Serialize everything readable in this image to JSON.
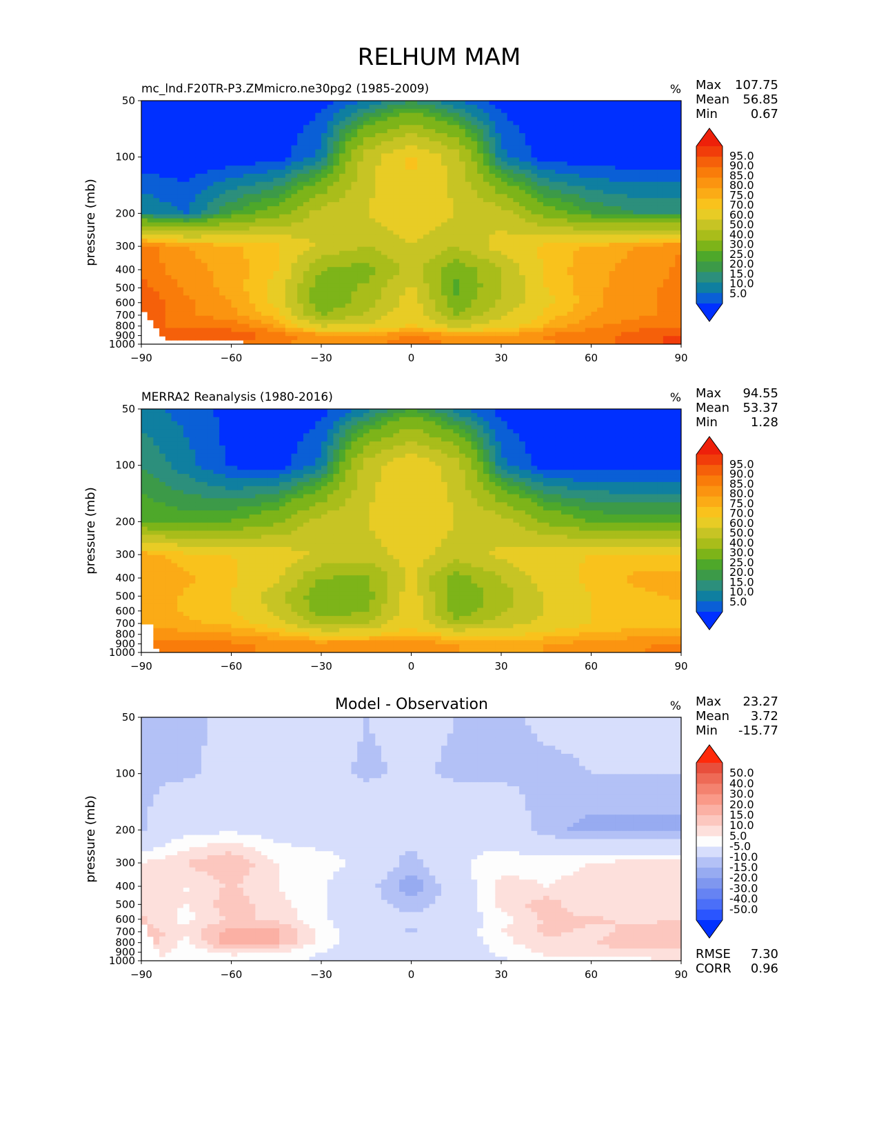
{
  "page_title": "RELHUM MAM",
  "colors": {
    "abs_levels": [
      "#0030ff",
      "#0a5fd6",
      "#0f7fa0",
      "#2c8f7c",
      "#3c9a48",
      "#4ea82a",
      "#7db419",
      "#a9bd1a",
      "#c7c424",
      "#e8cc25",
      "#f9c21c",
      "#fbab16",
      "#fb9410",
      "#f97c0a",
      "#f5600a",
      "#f13d0a",
      "#ee200a"
    ],
    "diff_levels": [
      "#0031ff",
      "#2a55ff",
      "#4b6ff8",
      "#6683f3",
      "#7f97ef",
      "#97abf1",
      "#b3c1f6",
      "#d7defc",
      "#fdfdfd",
      "#fde0dc",
      "#fcc7bf",
      "#fbb0a4",
      "#fa9988",
      "#f4826f",
      "#ee6a56",
      "#e84f3c",
      "#ff2a0a"
    ]
  },
  "panels": [
    {
      "title": "mc_lnd.F20TR-P3.ZMmicro.ne30pg2 (1985-2009)",
      "units": "%",
      "stats": {
        "max_label": "Max",
        "max": "107.75",
        "mean_label": "Mean",
        "mean": "56.85",
        "min_label": "Min",
        "min": "0.67"
      },
      "colorbar_labels": [
        "95.0",
        "90.0",
        "85.0",
        "80.0",
        "75.0",
        "70.0",
        "60.0",
        "50.0",
        "40.0",
        "30.0",
        "25.0",
        "20.0",
        "15.0",
        "10.0",
        "5.0"
      ]
    },
    {
      "title": "MERRA2 Reanalysis (1980-2016)",
      "units": "%",
      "stats": {
        "max_label": "Max",
        "max": "94.55",
        "mean_label": "Mean",
        "mean": "53.37",
        "min_label": "Min",
        "min": "1.28"
      },
      "colorbar_labels": [
        "95.0",
        "90.0",
        "85.0",
        "80.0",
        "75.0",
        "70.0",
        "60.0",
        "50.0",
        "40.0",
        "30.0",
        "25.0",
        "20.0",
        "15.0",
        "10.0",
        "5.0"
      ]
    },
    {
      "title": "Model - Observation",
      "units": "%",
      "stats": {
        "max_label": "Max",
        "max": "23.27",
        "mean_label": "Mean",
        "mean": "3.72",
        "min_label": "Min",
        "min": "-15.77"
      },
      "colorbar_labels": [
        "50.0",
        "40.0",
        "30.0",
        "20.0",
        "15.0",
        "10.0",
        "5.0",
        "-5.0",
        "-10.0",
        "-15.0",
        "-20.0",
        "-30.0",
        "-40.0",
        "-50.0"
      ],
      "extra_stats": {
        "rmse_label": "RMSE",
        "rmse": "7.30",
        "corr_label": "CORR",
        "corr": "0.96"
      }
    }
  ],
  "chart_data": [
    {
      "type": "heatmap",
      "title": "mc_lnd.F20TR-P3.ZMmicro.ne30pg2 (1985-2009)",
      "xlabel": "",
      "ylabel": "pressure (mb)",
      "xlim": [
        -90,
        90
      ],
      "ylim": [
        1000,
        50
      ],
      "xticks": [
        "−90",
        "−60",
        "−30",
        "0",
        "30",
        "60",
        "90"
      ],
      "yticks": [
        "50",
        "100",
        "200",
        "300",
        "400",
        "500",
        "600",
        "700",
        "800",
        "900",
        "1000"
      ],
      "levels": [
        5,
        10,
        15,
        20,
        25,
        30,
        40,
        50,
        60,
        70,
        75,
        80,
        85,
        90,
        95
      ],
      "field": {
        "lat": [
          -90,
          -75,
          -60,
          -45,
          -30,
          -15,
          0,
          15,
          30,
          45,
          60,
          75,
          90
        ],
        "pressure": [
          50,
          100,
          200,
          300,
          400,
          500,
          600,
          700,
          800,
          900,
          1000
        ],
        "values": [
          [
            1,
            1,
            1,
            1,
            3,
            10,
            20,
            10,
            3,
            1,
            1,
            1,
            1
          ],
          [
            1,
            1,
            1,
            2,
            12,
            55,
            72,
            55,
            12,
            2,
            1,
            1,
            1
          ],
          [
            15,
            10,
            25,
            35,
            55,
            60,
            68,
            60,
            55,
            35,
            25,
            20,
            20
          ],
          [
            88,
            80,
            76,
            72,
            58,
            50,
            60,
            50,
            65,
            72,
            76,
            80,
            85
          ],
          [
            88,
            82,
            78,
            70,
            40,
            35,
            55,
            32,
            50,
            72,
            78,
            82,
            86
          ],
          [
            92,
            84,
            78,
            68,
            33,
            42,
            62,
            28,
            50,
            70,
            78,
            84,
            86
          ],
          [
            94,
            86,
            80,
            68,
            32,
            45,
            66,
            33,
            52,
            68,
            78,
            84,
            86
          ],
          [
            94,
            86,
            82,
            72,
            40,
            52,
            68,
            40,
            58,
            72,
            80,
            84,
            86
          ],
          [
            90,
            90,
            88,
            80,
            60,
            62,
            72,
            58,
            66,
            76,
            84,
            88,
            90
          ],
          [
            90,
            92,
            94,
            88,
            82,
            80,
            86,
            82,
            80,
            86,
            88,
            92,
            96
          ],
          [
            90,
            88,
            90,
            86,
            82,
            84,
            88,
            84,
            80,
            84,
            88,
            92,
            98
          ]
        ],
        "missing_region": "below surface near -90 to -55"
      }
    },
    {
      "type": "heatmap",
      "title": "MERRA2 Reanalysis (1980-2016)",
      "xlabel": "",
      "ylabel": "pressure (mb)",
      "xlim": [
        -90,
        90
      ],
      "ylim": [
        1000,
        50
      ],
      "xticks": [
        "−90",
        "−60",
        "−30",
        "0",
        "30",
        "60",
        "90"
      ],
      "yticks": [
        "50",
        "100",
        "200",
        "300",
        "400",
        "500",
        "600",
        "700",
        "800",
        "900",
        "1000"
      ],
      "levels": [
        5,
        10,
        15,
        20,
        25,
        30,
        40,
        50,
        60,
        70,
        75,
        80,
        85,
        90,
        95
      ],
      "field": {
        "lat": [
          -90,
          -75,
          -60,
          -45,
          -30,
          -15,
          0,
          15,
          30,
          45,
          60,
          75,
          90
        ],
        "pressure": [
          50,
          100,
          200,
          300,
          400,
          500,
          600,
          700,
          800,
          900,
          1000
        ],
        "values": [
          [
            12,
            8,
            3,
            1,
            3,
            12,
            25,
            12,
            3,
            1,
            1,
            1,
            1
          ],
          [
            20,
            12,
            4,
            2,
            12,
            55,
            70,
            55,
            12,
            2,
            2,
            2,
            2
          ],
          [
            30,
            28,
            30,
            38,
            55,
            60,
            70,
            60,
            55,
            38,
            30,
            28,
            28
          ],
          [
            78,
            72,
            70,
            66,
            58,
            55,
            65,
            55,
            62,
            68,
            70,
            72,
            72
          ],
          [
            80,
            76,
            72,
            62,
            40,
            38,
            62,
            35,
            50,
            66,
            72,
            76,
            76
          ],
          [
            80,
            74,
            70,
            55,
            32,
            35,
            68,
            30,
            45,
            60,
            70,
            74,
            76
          ],
          [
            80,
            74,
            70,
            58,
            33,
            40,
            68,
            33,
            48,
            60,
            70,
            72,
            72
          ],
          [
            80,
            76,
            74,
            66,
            45,
            50,
            70,
            45,
            55,
            64,
            70,
            72,
            72
          ],
          [
            82,
            82,
            80,
            76,
            68,
            68,
            74,
            68,
            68,
            72,
            76,
            78,
            80
          ],
          [
            86,
            88,
            86,
            84,
            82,
            84,
            84,
            80,
            78,
            80,
            82,
            84,
            86
          ],
          [
            88,
            90,
            86,
            84,
            82,
            84,
            84,
            80,
            78,
            80,
            82,
            84,
            90
          ]
        ],
        "missing_region": "below surface near -90 to -85"
      }
    },
    {
      "type": "heatmap",
      "title": "Model - Observation",
      "xlabel": "",
      "ylabel": "pressure (mb)",
      "xlim": [
        -90,
        90
      ],
      "ylim": [
        1000,
        50
      ],
      "xticks": [
        "−90",
        "−60",
        "−30",
        "0",
        "30",
        "60",
        "90"
      ],
      "yticks": [
        "50",
        "100",
        "200",
        "300",
        "400",
        "500",
        "600",
        "700",
        "800",
        "900",
        "1000"
      ],
      "levels": [
        -50,
        -40,
        -30,
        -20,
        -15,
        -10,
        -5,
        5,
        10,
        15,
        20,
        30,
        40,
        50
      ],
      "field": {
        "lat": [
          -90,
          -75,
          -60,
          -45,
          -30,
          -15,
          0,
          15,
          30,
          45,
          60,
          75,
          90
        ],
        "pressure": [
          50,
          100,
          200,
          300,
          400,
          500,
          600,
          700,
          800,
          900,
          1000
        ],
        "values": [
          [
            -6,
            -6,
            -4,
            -2,
            -2,
            -5,
            -3,
            -5,
            -6,
            -4,
            -4,
            -4,
            -4
          ],
          [
            -6,
            -6,
            -3,
            -2,
            -3,
            -6,
            -4,
            -6,
            -6,
            -6,
            -5,
            -5,
            -5
          ],
          [
            -6,
            3,
            4,
            2,
            0,
            1,
            -2,
            1,
            1,
            -8,
            -12,
            -12,
            -12
          ],
          [
            10,
            15,
            20,
            10,
            8,
            3,
            -8,
            4,
            8,
            8,
            10,
            12,
            12
          ],
          [
            10,
            10,
            16,
            10,
            6,
            -2,
            -14,
            0,
            12,
            10,
            12,
            12,
            12
          ],
          [
            12,
            10,
            18,
            12,
            6,
            -2,
            -8,
            -2,
            12,
            18,
            10,
            12,
            14
          ],
          [
            16,
            8,
            16,
            14,
            6,
            0,
            -3,
            0,
            8,
            16,
            16,
            14,
            15
          ],
          [
            18,
            12,
            22,
            22,
            8,
            0,
            -6,
            0,
            10,
            16,
            14,
            16,
            18
          ],
          [
            20,
            8,
            24,
            20,
            8,
            0,
            0,
            0,
            8,
            14,
            14,
            20,
            20
          ],
          [
            16,
            6,
            12,
            10,
            5,
            0,
            0,
            0,
            6,
            12,
            12,
            14,
            14
          ],
          [
            10,
            6,
            6,
            6,
            4,
            0,
            0,
            0,
            4,
            6,
            8,
            8,
            10
          ]
        ]
      }
    }
  ]
}
